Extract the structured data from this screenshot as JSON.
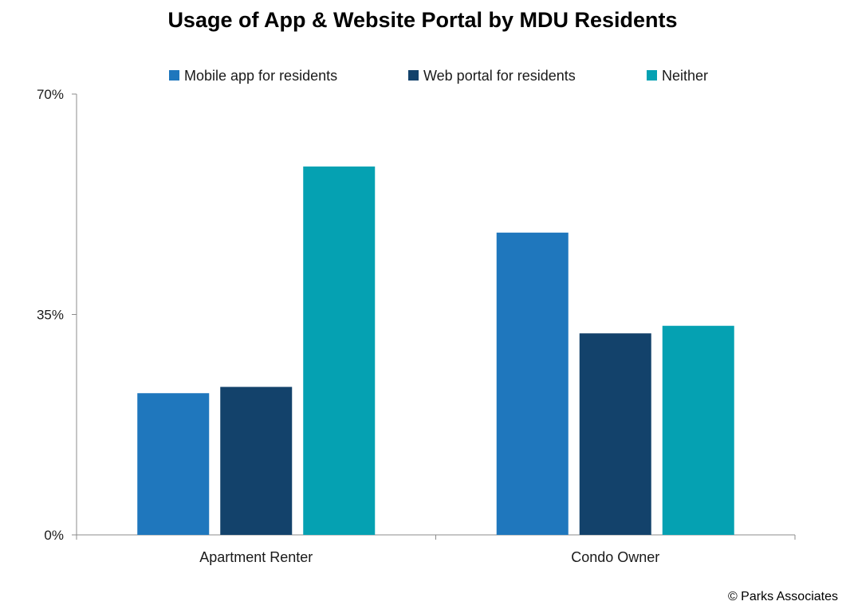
{
  "chart_data": {
    "type": "bar",
    "title": "Usage of App & Website Portal by MDU Residents",
    "xlabel": "",
    "ylabel": "",
    "categories": [
      "Apartment Renter",
      "Condo Owner"
    ],
    "series": [
      {
        "name": "Mobile app for residents",
        "color": "#1f77bd",
        "values": [
          22.5,
          48
        ]
      },
      {
        "name": "Web portal for residents",
        "color": "#13426b",
        "values": [
          23.5,
          32
        ]
      },
      {
        "name": "Neither",
        "color": "#05a1b2",
        "values": [
          58.5,
          33.2
        ]
      }
    ],
    "ylim": [
      0,
      70
    ],
    "yticks": [
      {
        "value": 0,
        "label": "0%"
      },
      {
        "value": 35,
        "label": "35%"
      },
      {
        "value": 70,
        "label": "70%"
      }
    ],
    "grid": false,
    "legend_position": "top"
  },
  "credit": "© Parks Associates"
}
